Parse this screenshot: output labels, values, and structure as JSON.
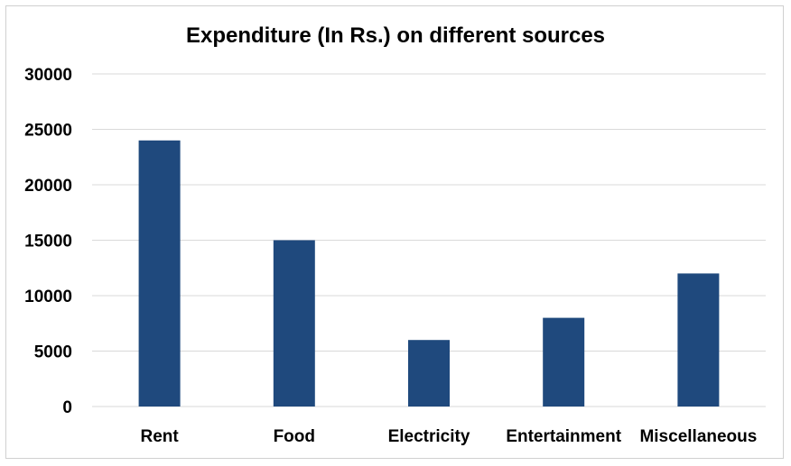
{
  "chart_data": {
    "type": "bar",
    "title": "Expenditure (In Rs.) on different sources",
    "categories": [
      "Rent",
      "Food",
      "Electricity",
      "Entertainment",
      "Miscellaneous"
    ],
    "values": [
      24000,
      15000,
      6000,
      8000,
      12000
    ],
    "ylim": [
      0,
      30000
    ],
    "yticks": [
      0,
      5000,
      10000,
      15000,
      20000,
      25000,
      30000
    ],
    "ytick_labels": [
      "0",
      "5000",
      "10000",
      "15000",
      "20000",
      "25000",
      "30000"
    ],
    "xlabel": "",
    "ylabel": "",
    "grid": true,
    "legend": "none",
    "bar_color": "#1f497d"
  }
}
